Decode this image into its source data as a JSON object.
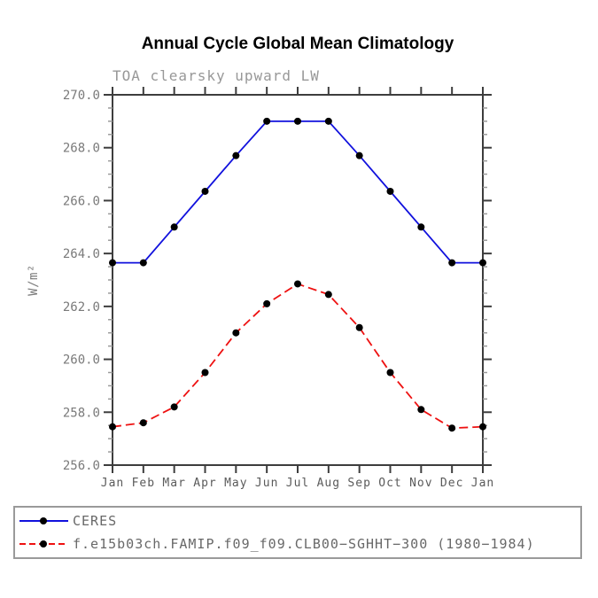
{
  "header": {
    "title": "Annual Cycle Global Mean Climatology",
    "subtitle": "TOA clearsky upward LW"
  },
  "palette": {
    "axis": "#3d3d3d",
    "minor_tick": "#9b9b9b",
    "marker": "#000000",
    "ceres_blue": "#1111dd",
    "model_red": "#ee1111"
  },
  "chart_data": {
    "type": "line",
    "title": "Annual Cycle Global Mean Climatology",
    "subtitle": "TOA clearsky upward LW",
    "xlabel": "",
    "ylabel": "W/m²",
    "grid": false,
    "legend_position": "bottom-left",
    "categories": [
      "Jan",
      "Feb",
      "Mar",
      "Apr",
      "May",
      "Jun",
      "Jul",
      "Aug",
      "Sep",
      "Oct",
      "Nov",
      "Dec",
      "Jan"
    ],
    "ylim": [
      256.0,
      270.0
    ],
    "yticks": {
      "values": [
        256,
        258,
        260,
        262,
        264,
        266,
        268,
        270
      ],
      "labels": [
        "256.0",
        "258.0",
        "260.0",
        "262.0",
        "264.0",
        "266.0",
        "268.0",
        "270.0"
      ],
      "minor_step": 0.5
    },
    "series": [
      {
        "name": "CERES",
        "color": "#1111dd",
        "line_style": "solid",
        "marker": "black-dot",
        "values": [
          263.65,
          263.65,
          265.0,
          266.35,
          267.7,
          269.0,
          269.0,
          269.0,
          267.7,
          266.35,
          265.0,
          263.65,
          263.65
        ]
      },
      {
        "name": "f.e15b03ch.FAMIP.f09_f09.CLB00−SGHHT−300 (1980−1984)",
        "color": "#ee1111",
        "line_style": "dashed",
        "marker": "black-dot",
        "values": [
          257.45,
          257.6,
          258.2,
          259.5,
          261.0,
          262.1,
          262.85,
          262.45,
          261.2,
          259.5,
          258.1,
          257.4,
          257.45
        ]
      }
    ]
  }
}
